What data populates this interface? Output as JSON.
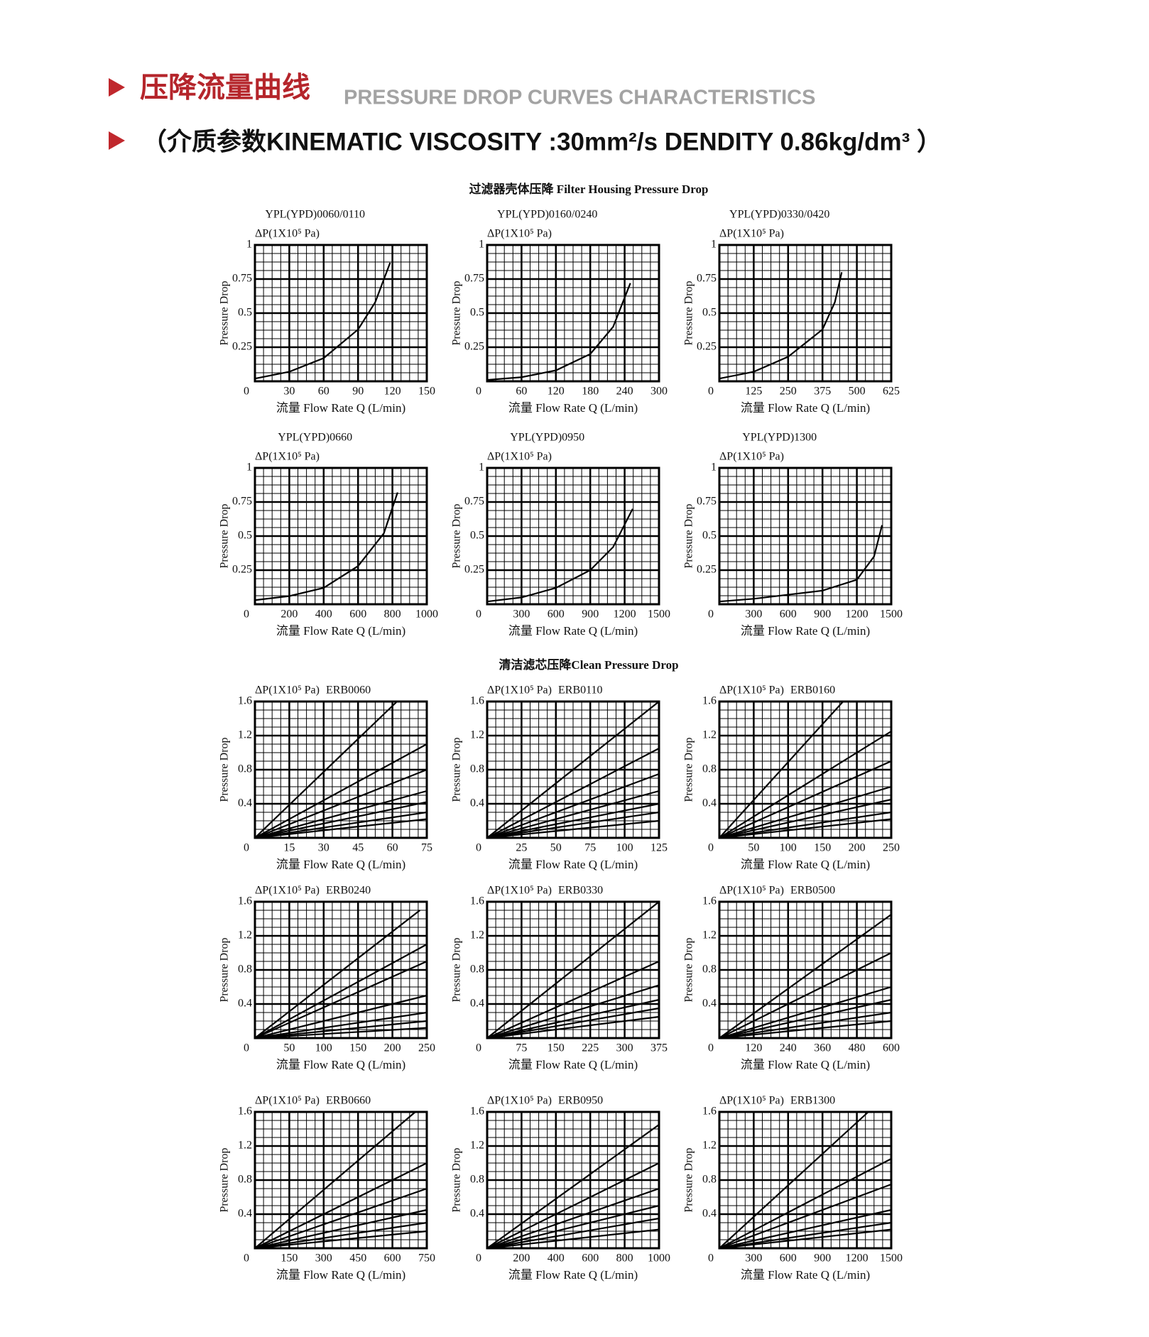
{
  "header": {
    "title_cn": "压降流量曲线",
    "title_en": "PRESSURE DROP CURVES CHARACTERISTICS",
    "subtitle": "（介质参数KINEMATIC VISCOSITY :30mm²/s DENDITY 0.86kg/dm³ ）"
  },
  "sections": [
    "过滤器壳体压降 Filter Housing Pressure Drop",
    "清洁滤芯压降Clean Pressure Drop"
  ],
  "chart_data": [
    {
      "type": "line",
      "title": "YPL(YPD)0060/0110",
      "y_unit": "ΔP(1X10⁵ Pa)",
      "ylabel": "Pressure Drop",
      "xlabel": "流量 Flow Rate  Q (L/min)",
      "xlim": [
        0,
        150
      ],
      "ylim": [
        0,
        1
      ],
      "xticks": [
        30,
        60,
        90,
        120,
        150
      ],
      "yticks": [
        0,
        0.25,
        0.5,
        0.75,
        1
      ],
      "grid": true,
      "series": [
        {
          "color": "#000000",
          "x": [
            0,
            30,
            60,
            90,
            105,
            118
          ],
          "values": [
            0.02,
            0.07,
            0.17,
            0.38,
            0.58,
            0.87
          ]
        }
      ]
    },
    {
      "type": "line",
      "title": "YPL(YPD)0160/0240",
      "y_unit": "ΔP(1X10⁵ Pa)",
      "ylabel": "Pressure Drop",
      "xlabel": "流量 Flow Rate  Q (L/min)",
      "xlim": [
        0,
        300
      ],
      "ylim": [
        0,
        1
      ],
      "xticks": [
        60,
        120,
        180,
        240,
        300
      ],
      "yticks": [
        0,
        0.25,
        0.5,
        0.75,
        1
      ],
      "grid": true,
      "series": [
        {
          "color": "#000000",
          "x": [
            0,
            60,
            120,
            180,
            220,
            250
          ],
          "values": [
            0.01,
            0.03,
            0.08,
            0.2,
            0.4,
            0.72
          ]
        }
      ]
    },
    {
      "type": "line",
      "title": "YPL(YPD)0330/0420",
      "y_unit": "ΔP(1X10⁵ Pa)",
      "ylabel": "Pressure Drop",
      "xlabel": "流量 Flow Rate  Q (L/min)",
      "xlim": [
        0,
        625
      ],
      "ylim": [
        0,
        1
      ],
      "xticks": [
        125,
        250,
        375,
        500,
        625
      ],
      "yticks": [
        0,
        0.25,
        0.5,
        0.75,
        1
      ],
      "grid": true,
      "series": [
        {
          "color": "#000000",
          "x": [
            0,
            125,
            250,
            375,
            420,
            445
          ],
          "values": [
            0.02,
            0.07,
            0.18,
            0.38,
            0.58,
            0.8
          ]
        }
      ]
    },
    {
      "type": "line",
      "title": "YPL(YPD)0660",
      "y_unit": "ΔP(1X10⁵ Pa)",
      "ylabel": "Pressure Drop",
      "xlabel": "流量 Flow Rate  Q (L/min)",
      "xlim": [
        0,
        1000
      ],
      "ylim": [
        0,
        1
      ],
      "xticks": [
        200,
        400,
        600,
        800,
        1000
      ],
      "yticks": [
        0,
        0.25,
        0.5,
        0.75,
        1
      ],
      "grid": true,
      "series": [
        {
          "color": "#000000",
          "x": [
            0,
            200,
            400,
            600,
            750,
            830
          ],
          "values": [
            0.03,
            0.06,
            0.12,
            0.28,
            0.52,
            0.82
          ]
        }
      ]
    },
    {
      "type": "line",
      "title": "YPL(YPD)0950",
      "y_unit": "ΔP(1X10⁵ Pa)",
      "ylabel": "Pressure Drop",
      "xlabel": "流量 Flow Rate  Q (L/min)",
      "xlim": [
        0,
        1500
      ],
      "ylim": [
        0,
        1
      ],
      "xticks": [
        300,
        600,
        900,
        1200,
        1500
      ],
      "yticks": [
        0,
        0.25,
        0.5,
        0.75,
        1
      ],
      "grid": true,
      "series": [
        {
          "color": "#000000",
          "x": [
            0,
            300,
            600,
            900,
            1100,
            1270
          ],
          "values": [
            0.02,
            0.05,
            0.12,
            0.25,
            0.42,
            0.7
          ]
        }
      ]
    },
    {
      "type": "line",
      "title": "YPL(YPD)1300",
      "y_unit": "ΔP(1X10⁵ Pa)",
      "ylabel": "Pressure Drop",
      "xlabel": "流量 Flow Rate  Q (L/min)",
      "xlim": [
        0,
        1500
      ],
      "ylim": [
        0,
        1
      ],
      "xticks": [
        300,
        600,
        900,
        1200,
        1500
      ],
      "yticks": [
        0,
        0.25,
        0.5,
        0.75,
        1
      ],
      "grid": true,
      "series": [
        {
          "color": "#000000",
          "x": [
            0,
            300,
            600,
            900,
            1200,
            1350,
            1420
          ],
          "values": [
            0.02,
            0.04,
            0.07,
            0.1,
            0.18,
            0.35,
            0.58
          ]
        }
      ]
    },
    {
      "type": "line",
      "title": "ERB0060",
      "y_unit": "ΔP(1X10⁵ Pa)",
      "ylabel": "Pressure Drop",
      "xlabel": "流量 Flow Rate  Q (L/min)",
      "xlim": [
        0,
        75
      ],
      "ylim": [
        0,
        1.6
      ],
      "xticks": [
        15,
        30,
        45,
        60,
        75
      ],
      "yticks": [
        0,
        0.4,
        0.8,
        1.2,
        1.6
      ],
      "grid": true,
      "series": [
        {
          "color": "#000000",
          "x": [
            0,
            62
          ],
          "values": [
            0,
            1.6
          ]
        },
        {
          "color": "#000000",
          "x": [
            0,
            75
          ],
          "values": [
            0,
            1.1
          ]
        },
        {
          "color": "#000000",
          "x": [
            0,
            75
          ],
          "values": [
            0,
            0.8
          ]
        },
        {
          "color": "#000000",
          "x": [
            0,
            75
          ],
          "values": [
            0,
            0.55
          ]
        },
        {
          "color": "#000000",
          "x": [
            0,
            75
          ],
          "values": [
            0,
            0.42
          ]
        },
        {
          "color": "#000000",
          "x": [
            0,
            75
          ],
          "values": [
            0,
            0.3
          ]
        },
        {
          "color": "#000000",
          "x": [
            0,
            75
          ],
          "values": [
            0,
            0.22
          ]
        }
      ]
    },
    {
      "type": "line",
      "title": "ERB0110",
      "y_unit": "ΔP(1X10⁵ Pa)",
      "ylabel": "Pressure Drop",
      "xlabel": "流量 Flow Rate  Q (L/min)",
      "xlim": [
        0,
        125
      ],
      "ylim": [
        0,
        1.6
      ],
      "xticks": [
        25,
        50,
        75,
        100,
        125
      ],
      "yticks": [
        0,
        0.4,
        0.8,
        1.2,
        1.6
      ],
      "grid": true,
      "series": [
        {
          "color": "#000000",
          "x": [
            0,
            125
          ],
          "values": [
            0,
            1.6
          ]
        },
        {
          "color": "#000000",
          "x": [
            0,
            125
          ],
          "values": [
            0,
            1.05
          ]
        },
        {
          "color": "#000000",
          "x": [
            0,
            125
          ],
          "values": [
            0,
            0.75
          ]
        },
        {
          "color": "#000000",
          "x": [
            0,
            125
          ],
          "values": [
            0,
            0.55
          ]
        },
        {
          "color": "#000000",
          "x": [
            0,
            125
          ],
          "values": [
            0,
            0.4
          ]
        },
        {
          "color": "#000000",
          "x": [
            0,
            125
          ],
          "values": [
            0,
            0.3
          ]
        },
        {
          "color": "#000000",
          "x": [
            0,
            125
          ],
          "values": [
            0,
            0.2
          ]
        }
      ]
    },
    {
      "type": "line",
      "title": "ERB0160",
      "y_unit": "ΔP(1X10⁵ Pa)",
      "ylabel": "Pressure Drop",
      "xlabel": "流量 Flow Rate  Q (L/min)",
      "xlim": [
        0,
        250
      ],
      "ylim": [
        0,
        1.6
      ],
      "xticks": [
        50,
        100,
        150,
        200,
        250
      ],
      "yticks": [
        0,
        0.4,
        0.8,
        1.2,
        1.6
      ],
      "grid": true,
      "series": [
        {
          "color": "#000000",
          "x": [
            0,
            180
          ],
          "values": [
            0,
            1.6
          ]
        },
        {
          "color": "#000000",
          "x": [
            0,
            250
          ],
          "values": [
            0,
            1.25
          ]
        },
        {
          "color": "#000000",
          "x": [
            0,
            250
          ],
          "values": [
            0,
            0.9
          ]
        },
        {
          "color": "#000000",
          "x": [
            0,
            250
          ],
          "values": [
            0,
            0.6
          ]
        },
        {
          "color": "#000000",
          "x": [
            0,
            250
          ],
          "values": [
            0,
            0.45
          ]
        },
        {
          "color": "#000000",
          "x": [
            0,
            250
          ],
          "values": [
            0,
            0.3
          ]
        },
        {
          "color": "#000000",
          "x": [
            0,
            250
          ],
          "values": [
            0,
            0.22
          ]
        }
      ]
    },
    {
      "type": "line",
      "title": "ERB0240",
      "y_unit": "ΔP(1X10⁵ Pa)",
      "ylabel": "Pressure Drop",
      "xlabel": "流量 Flow Rate  Q (L/min)",
      "xlim": [
        0,
        250
      ],
      "ylim": [
        0,
        1.6
      ],
      "xticks": [
        50,
        100,
        150,
        200,
        250
      ],
      "yticks": [
        0,
        0.4,
        0.8,
        1.2,
        1.6
      ],
      "grid": true,
      "series": [
        {
          "color": "#000000",
          "x": [
            0,
            240
          ],
          "values": [
            0,
            1.5
          ]
        },
        {
          "color": "#000000",
          "x": [
            0,
            250
          ],
          "values": [
            0,
            1.1
          ]
        },
        {
          "color": "#000000",
          "x": [
            0,
            250
          ],
          "values": [
            0,
            0.9
          ]
        },
        {
          "color": "#000000",
          "x": [
            0,
            250
          ],
          "values": [
            0,
            0.5
          ]
        },
        {
          "color": "#000000",
          "x": [
            0,
            250
          ],
          "values": [
            0,
            0.3
          ]
        },
        {
          "color": "#000000",
          "x": [
            0,
            250
          ],
          "values": [
            0,
            0.2
          ]
        },
        {
          "color": "#000000",
          "x": [
            0,
            250
          ],
          "values": [
            0,
            0.12
          ]
        }
      ]
    },
    {
      "type": "line",
      "title": "ERB0330",
      "y_unit": "ΔP(1X10⁵ Pa)",
      "ylabel": "Pressure Drop",
      "xlabel": "流量 Flow Rate  Q (L/min)",
      "xlim": [
        0,
        375
      ],
      "ylim": [
        0,
        1.6
      ],
      "xticks": [
        75,
        150,
        225,
        300,
        375
      ],
      "yticks": [
        0,
        0.4,
        0.8,
        1.2,
        1.6
      ],
      "grid": true,
      "series": [
        {
          "color": "#000000",
          "x": [
            0,
            375
          ],
          "values": [
            0,
            1.6
          ]
        },
        {
          "color": "#000000",
          "x": [
            0,
            375
          ],
          "values": [
            0,
            0.9
          ]
        },
        {
          "color": "#000000",
          "x": [
            0,
            375
          ],
          "values": [
            0,
            0.62
          ]
        },
        {
          "color": "#000000",
          "x": [
            0,
            375
          ],
          "values": [
            0,
            0.45
          ]
        },
        {
          "color": "#000000",
          "x": [
            0,
            375
          ],
          "values": [
            0,
            0.35
          ]
        },
        {
          "color": "#000000",
          "x": [
            0,
            375
          ],
          "values": [
            0,
            0.25
          ]
        }
      ]
    },
    {
      "type": "line",
      "title": "ERB0500",
      "y_unit": "ΔP(1X10⁵ Pa)",
      "ylabel": "Pressure Drop",
      "xlabel": "流量 Flow Rate  Q (L/min)",
      "xlim": [
        0,
        600
      ],
      "ylim": [
        0,
        1.6
      ],
      "xticks": [
        120,
        240,
        360,
        480,
        600
      ],
      "yticks": [
        0,
        0.4,
        0.8,
        1.2,
        1.6
      ],
      "grid": true,
      "series": [
        {
          "color": "#000000",
          "x": [
            0,
            600
          ],
          "values": [
            0,
            1.45
          ]
        },
        {
          "color": "#000000",
          "x": [
            0,
            600
          ],
          "values": [
            0,
            1.0
          ]
        },
        {
          "color": "#000000",
          "x": [
            0,
            600
          ],
          "values": [
            0,
            0.6
          ]
        },
        {
          "color": "#000000",
          "x": [
            0,
            600
          ],
          "values": [
            0,
            0.45
          ]
        },
        {
          "color": "#000000",
          "x": [
            0,
            600
          ],
          "values": [
            0,
            0.3
          ]
        },
        {
          "color": "#000000",
          "x": [
            0,
            600
          ],
          "values": [
            0,
            0.2
          ]
        }
      ]
    },
    {
      "type": "line",
      "title": "ERB0660",
      "y_unit": "ΔP(1X10⁵ Pa)",
      "ylabel": "Pressure Drop",
      "xlabel": "流量 Flow Rate  Q (L/min)",
      "xlim": [
        0,
        750
      ],
      "ylim": [
        0,
        1.6
      ],
      "xticks": [
        150,
        300,
        450,
        600,
        750
      ],
      "yticks": [
        0,
        0.4,
        0.8,
        1.2,
        1.6
      ],
      "grid": true,
      "series": [
        {
          "color": "#000000",
          "x": [
            0,
            700
          ],
          "values": [
            0,
            1.6
          ]
        },
        {
          "color": "#000000",
          "x": [
            0,
            750
          ],
          "values": [
            0,
            1.0
          ]
        },
        {
          "color": "#000000",
          "x": [
            0,
            750
          ],
          "values": [
            0,
            0.7
          ]
        },
        {
          "color": "#000000",
          "x": [
            0,
            750
          ],
          "values": [
            0,
            0.45
          ]
        },
        {
          "color": "#000000",
          "x": [
            0,
            750
          ],
          "values": [
            0,
            0.3
          ]
        },
        {
          "color": "#000000",
          "x": [
            0,
            750
          ],
          "values": [
            0,
            0.2
          ]
        }
      ]
    },
    {
      "type": "line",
      "title": "ERB0950",
      "y_unit": "ΔP(1X10⁵ Pa)",
      "ylabel": "Pressure Drop",
      "xlabel": "流量 Flow Rate  Q (L/min)",
      "xlim": [
        0,
        1000
      ],
      "ylim": [
        0,
        1.6
      ],
      "xticks": [
        200,
        400,
        600,
        800,
        1000
      ],
      "yticks": [
        0,
        0.4,
        0.8,
        1.2,
        1.6
      ],
      "grid": true,
      "series": [
        {
          "color": "#000000",
          "x": [
            0,
            1000
          ],
          "values": [
            0,
            1.45
          ]
        },
        {
          "color": "#000000",
          "x": [
            0,
            1000
          ],
          "values": [
            0,
            1.0
          ]
        },
        {
          "color": "#000000",
          "x": [
            0,
            1000
          ],
          "values": [
            0,
            0.7
          ]
        },
        {
          "color": "#000000",
          "x": [
            0,
            1000
          ],
          "values": [
            0,
            0.5
          ]
        },
        {
          "color": "#000000",
          "x": [
            0,
            1000
          ],
          "values": [
            0,
            0.35
          ]
        },
        {
          "color": "#000000",
          "x": [
            0,
            1000
          ],
          "values": [
            0,
            0.22
          ]
        }
      ]
    },
    {
      "type": "line",
      "title": "ERB1300",
      "y_unit": "ΔP(1X10⁵ Pa)",
      "ylabel": "Pressure Drop",
      "xlabel": "流量 Flow Rate  Q (L/min)",
      "xlim": [
        0,
        1500
      ],
      "ylim": [
        0,
        1.6
      ],
      "xticks": [
        300,
        600,
        900,
        1200,
        1500
      ],
      "yticks": [
        0,
        0.4,
        0.8,
        1.2,
        1.6
      ],
      "grid": true,
      "series": [
        {
          "color": "#000000",
          "x": [
            0,
            1300
          ],
          "values": [
            0,
            1.6
          ]
        },
        {
          "color": "#000000",
          "x": [
            0,
            1500
          ],
          "values": [
            0,
            1.05
          ]
        },
        {
          "color": "#000000",
          "x": [
            0,
            1500
          ],
          "values": [
            0,
            0.75
          ]
        },
        {
          "color": "#000000",
          "x": [
            0,
            1500
          ],
          "values": [
            0,
            0.45
          ]
        },
        {
          "color": "#000000",
          "x": [
            0,
            1500
          ],
          "values": [
            0,
            0.3
          ]
        },
        {
          "color": "#000000",
          "x": [
            0,
            1500
          ],
          "values": [
            0,
            0.22
          ]
        }
      ]
    }
  ]
}
